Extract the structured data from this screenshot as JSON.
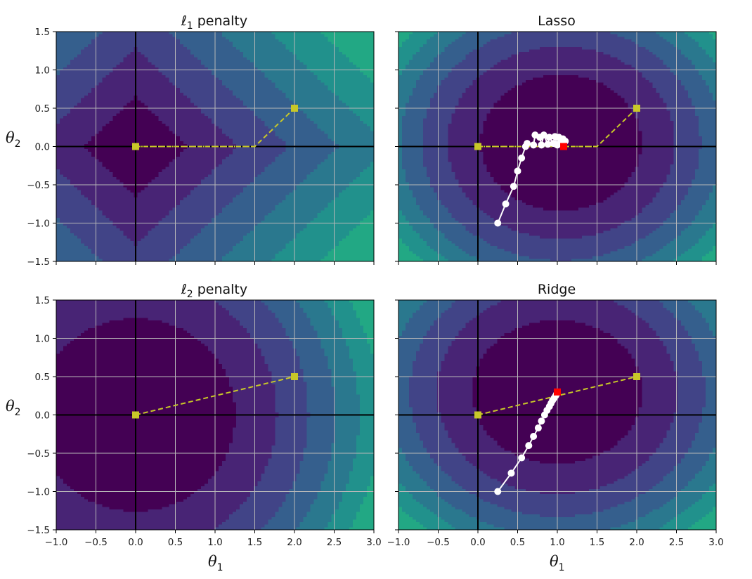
{
  "figure": {
    "x_ticks": [
      "−1.0",
      "−0.5",
      "0.0",
      "0.5",
      "1.0",
      "1.5",
      "2.0",
      "2.5",
      "3.0"
    ],
    "y_ticks": [
      "1.5",
      "1.0",
      "0.5",
      "0.0",
      "−0.5",
      "−1.0",
      "−1.5"
    ],
    "xlabel": "θ",
    "xlabel_sub": "1",
    "ylabel": "θ",
    "ylabel_sub": "2"
  },
  "chart_data": [
    {
      "type": "contour",
      "title_prefix": "ℓ",
      "title_sub": "1",
      "title_suffix": " penalty",
      "xlim": [
        -1.0,
        3.0
      ],
      "ylim": [
        -1.5,
        1.5
      ],
      "grid": true,
      "field": "l1_norm",
      "colormap": [
        "#440154",
        "#482475",
        "#414487",
        "#355f8d",
        "#2a788e",
        "#21918c",
        "#22a884"
      ],
      "dashed_path": [
        [
          0.0,
          0.0
        ],
        [
          1.5,
          0.0
        ],
        [
          2.0,
          0.5
        ]
      ],
      "dotted_path": [
        [
          0.0,
          0.0
        ],
        [
          1.5,
          0.0
        ]
      ],
      "square_markers": [
        [
          0.0,
          0.0
        ],
        [
          2.0,
          0.5
        ]
      ],
      "path_color": "#c8c828"
    },
    {
      "type": "contour",
      "title": "Lasso",
      "xlim": [
        -1.0,
        3.0
      ],
      "ylim": [
        -1.5,
        1.5
      ],
      "grid": true,
      "field": "lasso_cost",
      "colormap": [
        "#440154",
        "#482475",
        "#414487",
        "#355f8d",
        "#2a788e",
        "#21918c",
        "#22a884"
      ],
      "dashed_path": [
        [
          0.0,
          0.0
        ],
        [
          1.5,
          0.0
        ],
        [
          2.0,
          0.5
        ]
      ],
      "dotted_path": [
        [
          0.0,
          0.0
        ],
        [
          1.5,
          0.0
        ]
      ],
      "square_markers": [
        [
          0.0,
          0.0
        ],
        [
          2.0,
          0.5
        ]
      ],
      "path_color": "#c8c828",
      "gd_path": [
        [
          0.25,
          -1.0
        ],
        [
          0.35,
          -0.75
        ],
        [
          0.45,
          -0.52
        ],
        [
          0.5,
          -0.32
        ],
        [
          0.55,
          -0.15
        ],
        [
          0.6,
          0.0
        ],
        [
          0.62,
          0.04
        ],
        [
          0.7,
          0.02
        ],
        [
          0.72,
          0.15
        ],
        [
          0.78,
          0.12
        ],
        [
          0.8,
          0.02
        ],
        [
          0.83,
          0.15
        ],
        [
          0.88,
          0.03
        ],
        [
          0.9,
          0.12
        ],
        [
          0.95,
          0.04
        ],
        [
          0.97,
          0.13
        ],
        [
          1.0,
          0.02
        ],
        [
          1.02,
          0.12
        ],
        [
          1.05,
          0.05
        ],
        [
          1.07,
          0.1
        ],
        [
          1.08,
          0.03
        ],
        [
          1.1,
          0.07
        ]
      ],
      "gd_end": [
        1.08,
        0.0
      ],
      "gd_color": "#ffffff",
      "end_color": "#ff0000"
    },
    {
      "type": "contour",
      "title_prefix": "ℓ",
      "title_sub": "2",
      "title_suffix": " penalty",
      "xlim": [
        -1.0,
        3.0
      ],
      "ylim": [
        -1.5,
        1.5
      ],
      "grid": true,
      "field": "l2_norm",
      "colormap": [
        "#440154",
        "#482475",
        "#414487",
        "#355f8d",
        "#2a788e",
        "#21918c",
        "#22a884"
      ],
      "dashed_path": [
        [
          0.0,
          0.0
        ],
        [
          2.0,
          0.5
        ]
      ],
      "square_markers": [
        [
          0.0,
          0.0
        ],
        [
          2.0,
          0.5
        ]
      ],
      "path_color": "#c8c828"
    },
    {
      "type": "contour",
      "title": "Ridge",
      "xlim": [
        -1.0,
        3.0
      ],
      "ylim": [
        -1.5,
        1.5
      ],
      "grid": true,
      "field": "ridge_cost",
      "colormap": [
        "#440154",
        "#482475",
        "#414487",
        "#355f8d",
        "#2a788e",
        "#21918c",
        "#22a884"
      ],
      "dashed_path": [
        [
          0.0,
          0.0
        ],
        [
          2.0,
          0.5
        ]
      ],
      "square_markers": [
        [
          0.0,
          0.0
        ],
        [
          2.0,
          0.5
        ]
      ],
      "path_color": "#c8c828",
      "gd_path": [
        [
          0.25,
          -1.0
        ],
        [
          0.42,
          -0.76
        ],
        [
          0.55,
          -0.56
        ],
        [
          0.64,
          -0.4
        ],
        [
          0.7,
          -0.28
        ],
        [
          0.76,
          -0.17
        ],
        [
          0.8,
          -0.08
        ],
        [
          0.84,
          0.0
        ],
        [
          0.87,
          0.06
        ],
        [
          0.9,
          0.11
        ],
        [
          0.92,
          0.15
        ],
        [
          0.94,
          0.19
        ],
        [
          0.96,
          0.22
        ],
        [
          0.98,
          0.25
        ],
        [
          0.99,
          0.27
        ],
        [
          1.0,
          0.29
        ]
      ],
      "gd_end": [
        1.0,
        0.3
      ],
      "gd_color": "#ffffff",
      "end_color": "#ff0000"
    }
  ]
}
